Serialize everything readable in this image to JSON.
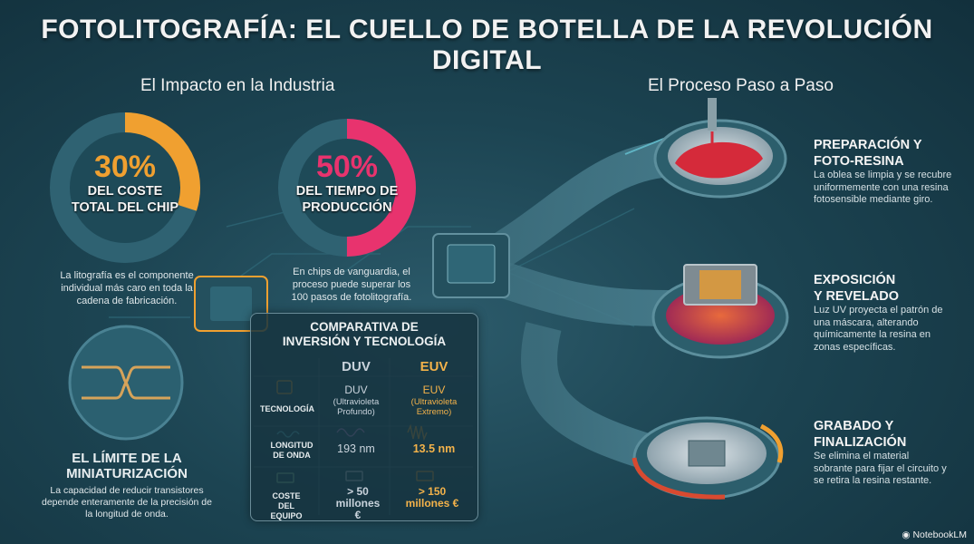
{
  "title": "FOTOLITOGRAFÍA: EL CUELLO DE BOTELLA DE LA REVOLUCIÓN DIGITAL",
  "impact": {
    "heading": "El Impacto en la Industria",
    "cost": {
      "percent": "30%",
      "label_line1": "DEL COSTE",
      "label_line2": "TOTAL DEL CHIP",
      "fraction": 0.3,
      "note": "La litografía es el componente individual más caro en toda la cadena de fabricación.",
      "color": "#f0a030"
    },
    "time": {
      "percent": "50%",
      "label_line1": "DEL TIEMPO DE",
      "label_line2": "PRODUCCIÓN",
      "fraction": 0.5,
      "note": "En chips de vanguardia, el proceso puede superar los 100 pasos de fotolitografía.",
      "color": "#e8336e"
    },
    "limit": {
      "heading_line1": "EL LÍMITE DE LA",
      "heading_line2": "MINIATURIZACIÓN",
      "note": "La capacidad de reducir transistores depende enteramente de la precisión de la longitud de onda."
    }
  },
  "comparison": {
    "title_line1": "COMPARATIVA DE",
    "title_line2": "INVERSIÓN Y TECNOLOGÍA",
    "col_duv": "DUV",
    "col_euv": "EUV",
    "rows": [
      {
        "label": "TECNOLOGÍA",
        "icon": "chip-icon",
        "duv": "DUV",
        "duv_sub": "(Ultravioleta Profundo)",
        "euv": "EUV",
        "euv_sub": "(Ultravioleta Extremo)"
      },
      {
        "label": "LONGITUD DE ONDA",
        "icon": "wave-icon",
        "duv": "193 nm",
        "euv": "13.5 nm"
      },
      {
        "label": "COSTE DEL EQUIPO",
        "icon": "money-icon",
        "duv": "> 50 millones €",
        "euv": "> 150 millones €"
      }
    ]
  },
  "process": {
    "heading": "El Proceso Paso a Paso",
    "steps": [
      {
        "title_line1": "PREPARACIÓN Y",
        "title_line2": "FOTO-RESINA",
        "desc": "La oblea se limpia y se recubre uniformemente con una resina fotosensible mediante giro."
      },
      {
        "title_line1": "EXPOSICIÓN",
        "title_line2": "Y REVELADO",
        "desc": "Luz UV proyecta el patrón de una máscara, alterando químicamente la resina en zonas específicas."
      },
      {
        "title_line1": "GRABADO Y",
        "title_line2": "FINALIZACIÓN",
        "desc": "Se elimina el material sobrante para fijar el circuito y se retira la resina restante."
      }
    ]
  },
  "brand": "NotebookLM"
}
